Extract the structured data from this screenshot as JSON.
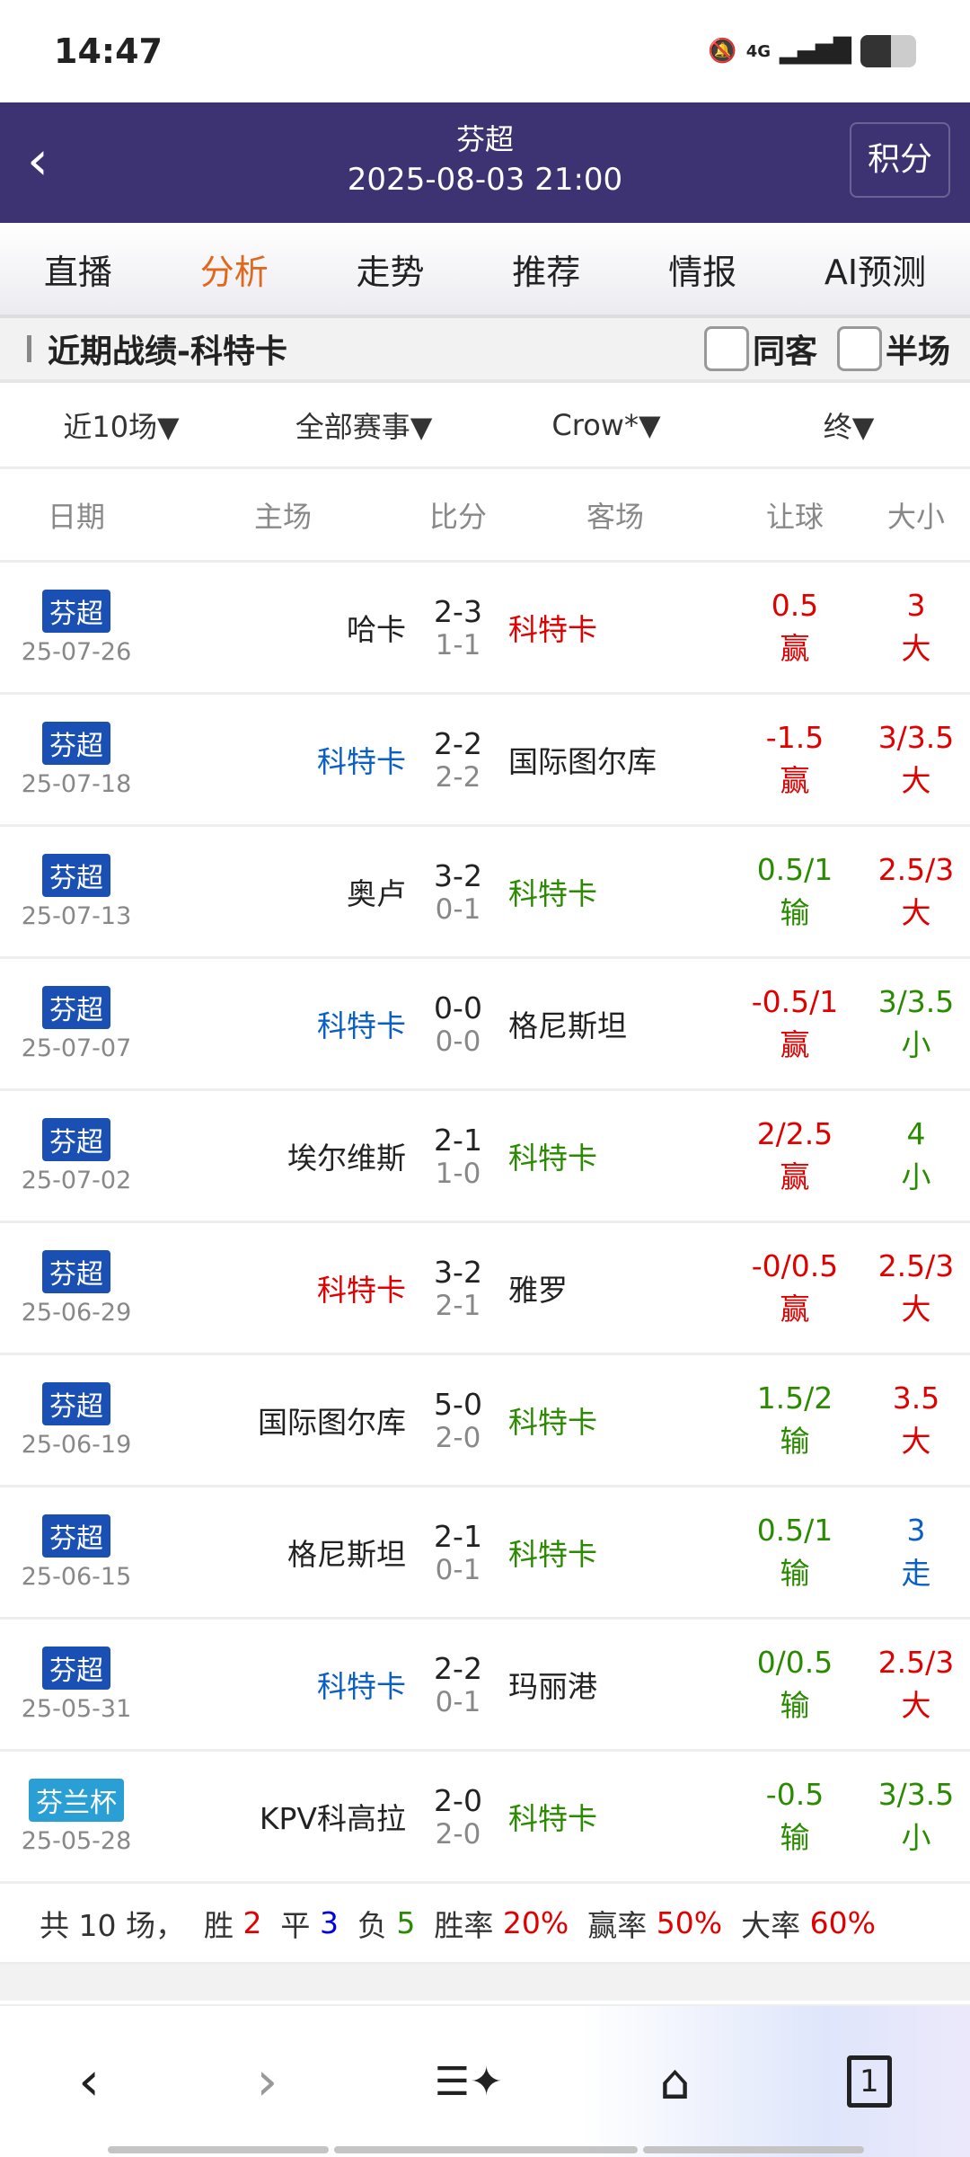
{
  "status": {
    "time": "14:47",
    "network": "4G"
  },
  "header": {
    "league": "芬超",
    "datetime": "2025-08-03 21:00",
    "standings_label": "积分"
  },
  "tabs": [
    {
      "label": "直播"
    },
    {
      "label": "分析",
      "active": true
    },
    {
      "label": "走势"
    },
    {
      "label": "推荐"
    },
    {
      "label": "情报"
    },
    {
      "label": "AI预测"
    }
  ],
  "section": {
    "title": "近期战绩-科特卡",
    "check1": "同客",
    "check2": "半场"
  },
  "filters": [
    "近10场▼",
    "全部赛事▼",
    "Crow*▼",
    "终▼"
  ],
  "columns": {
    "date": "日期",
    "home": "主场",
    "score": "比分",
    "away": "客场",
    "handicap": "让球",
    "ou": "大小"
  },
  "colors": {
    "red": "#e00000",
    "green": "#2a8a00",
    "blue": "#0a5fc4",
    "league_fin": "#1a4fb4",
    "league_cup": "#2a9fd6"
  },
  "matches": [
    {
      "league": "芬超",
      "date": "25-07-26",
      "home": "哈卡",
      "home_color": "#222",
      "score": "2-3",
      "ht": "1-1",
      "away": "科特卡",
      "away_color": "#e00000",
      "hc": "0.5",
      "hc_res": "赢",
      "hc_color": "#e00000",
      "ou": "3",
      "ou_res": "大",
      "ou_color": "#e00000"
    },
    {
      "league": "芬超",
      "date": "25-07-18",
      "home": "科特卡",
      "home_color": "#0a5fc4",
      "score": "2-2",
      "ht": "2-2",
      "away": "国际图尔库",
      "away_color": "#222",
      "hc": "-1.5",
      "hc_res": "赢",
      "hc_color": "#e00000",
      "ou": "3/3.5",
      "ou_res": "大",
      "ou_color": "#e00000"
    },
    {
      "league": "芬超",
      "date": "25-07-13",
      "home": "奥卢",
      "home_color": "#222",
      "score": "3-2",
      "ht": "0-1",
      "away": "科特卡",
      "away_color": "#2a8a00",
      "hc": "0.5/1",
      "hc_res": "输",
      "hc_color": "#2a8a00",
      "ou": "2.5/3",
      "ou_res": "大",
      "ou_color": "#e00000"
    },
    {
      "league": "芬超",
      "date": "25-07-07",
      "home": "科特卡",
      "home_color": "#0a5fc4",
      "score": "0-0",
      "ht": "0-0",
      "away": "格尼斯坦",
      "away_color": "#222",
      "hc": "-0.5/1",
      "hc_res": "赢",
      "hc_color": "#e00000",
      "ou": "3/3.5",
      "ou_res": "小",
      "ou_color": "#2a8a00"
    },
    {
      "league": "芬超",
      "date": "25-07-02",
      "home": "埃尔维斯",
      "home_color": "#222",
      "score": "2-1",
      "ht": "1-0",
      "away": "科特卡",
      "away_color": "#2a8a00",
      "hc": "2/2.5",
      "hc_res": "赢",
      "hc_color": "#e00000",
      "ou": "4",
      "ou_res": "小",
      "ou_color": "#2a8a00"
    },
    {
      "league": "芬超",
      "date": "25-06-29",
      "home": "科特卡",
      "home_color": "#e00000",
      "score": "3-2",
      "ht": "2-1",
      "away": "雅罗",
      "away_color": "#222",
      "hc": "-0/0.5",
      "hc_res": "赢",
      "hc_color": "#e00000",
      "ou": "2.5/3",
      "ou_res": "大",
      "ou_color": "#e00000"
    },
    {
      "league": "芬超",
      "date": "25-06-19",
      "home": "国际图尔库",
      "home_color": "#222",
      "score": "5-0",
      "ht": "2-0",
      "away": "科特卡",
      "away_color": "#2a8a00",
      "hc": "1.5/2",
      "hc_res": "输",
      "hc_color": "#2a8a00",
      "ou": "3.5",
      "ou_res": "大",
      "ou_color": "#e00000"
    },
    {
      "league": "芬超",
      "date": "25-06-15",
      "home": "格尼斯坦",
      "home_color": "#222",
      "score": "2-1",
      "ht": "0-1",
      "away": "科特卡",
      "away_color": "#2a8a00",
      "hc": "0.5/1",
      "hc_res": "输",
      "hc_color": "#2a8a00",
      "ou": "3",
      "ou_res": "走",
      "ou_color": "#0a5fc4"
    },
    {
      "league": "芬超",
      "date": "25-05-31",
      "home": "科特卡",
      "home_color": "#0a5fc4",
      "score": "2-2",
      "ht": "0-1",
      "away": "玛丽港",
      "away_color": "#222",
      "hc": "0/0.5",
      "hc_res": "输",
      "hc_color": "#2a8a00",
      "ou": "2.5/3",
      "ou_res": "大",
      "ou_color": "#e00000"
    },
    {
      "league": "芬兰杯",
      "date": "25-05-28",
      "home": "KPV科高拉",
      "home_color": "#222",
      "score": "2-0",
      "ht": "2-0",
      "away": "科特卡",
      "away_color": "#2a8a00",
      "hc": "-0.5",
      "hc_res": "输",
      "hc_color": "#2a8a00",
      "ou": "3/3.5",
      "ou_res": "小",
      "ou_color": "#2a8a00"
    }
  ],
  "summary": [
    {
      "t": "共 10 场，  胜 ",
      "c": "#333"
    },
    {
      "t": "2",
      "c": "#e00000"
    },
    {
      "t": "  平 ",
      "c": "#333"
    },
    {
      "t": "3",
      "c": "#0000e0"
    },
    {
      "t": "  负 ",
      "c": "#333"
    },
    {
      "t": "5",
      "c": "#2a8a00"
    },
    {
      "t": "  胜率 ",
      "c": "#333"
    },
    {
      "t": "20%",
      "c": "#e00000"
    },
    {
      "t": "  赢率 ",
      "c": "#333"
    },
    {
      "t": "50%",
      "c": "#e00000"
    },
    {
      "t": "  大率 ",
      "c": "#333"
    },
    {
      "t": "60%",
      "c": "#e00000"
    }
  ],
  "bottom_nav": {
    "tab_count": "1"
  }
}
